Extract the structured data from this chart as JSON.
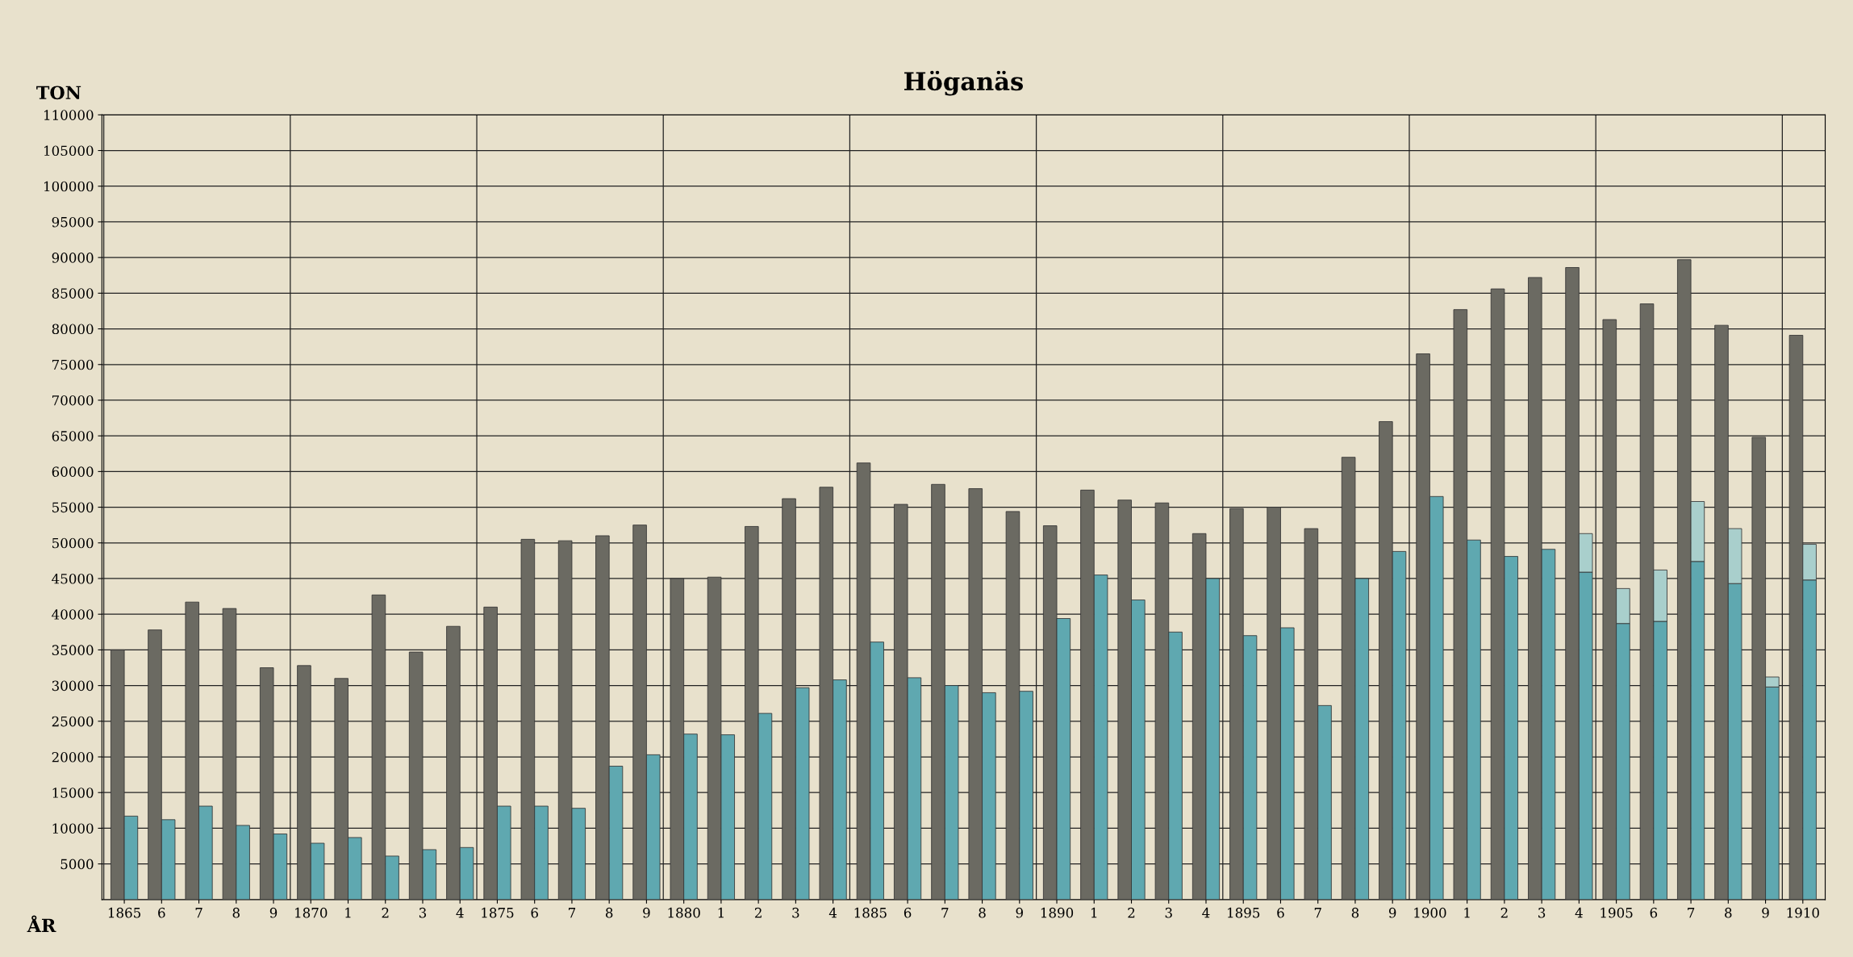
{
  "chart_data": {
    "type": "bar",
    "title": "Höganäs",
    "xlabel": "ÅR",
    "ylabel": "TON",
    "categories": [
      "1865",
      "6",
      "7",
      "8",
      "9",
      "1870",
      "1",
      "2",
      "3",
      "4",
      "1875",
      "6",
      "7",
      "8",
      "9",
      "1880",
      "1",
      "2",
      "3",
      "4",
      "1885",
      "6",
      "7",
      "8",
      "9",
      "1890",
      "1",
      "2",
      "3",
      "4",
      "1895",
      "6",
      "7",
      "8",
      "9",
      "1900",
      "1",
      "2",
      "3",
      "4",
      "1905",
      "6",
      "7",
      "8",
      "9",
      "1910"
    ],
    "series": [
      {
        "color": "#6b6a62",
        "values": [
          35000,
          37800,
          41700,
          40800,
          32500,
          32800,
          31000,
          42700,
          34700,
          38300,
          41000,
          50500,
          50300,
          51000,
          52500,
          45000,
          45200,
          52300,
          56200,
          57800,
          61200,
          55400,
          58200,
          57600,
          54400,
          52400,
          57400,
          56000,
          55600,
          51300,
          54800,
          55000,
          52000,
          62000,
          67000,
          76500,
          82700,
          85600,
          87200,
          88600,
          81300,
          83500,
          89700,
          80500,
          64800,
          79100
        ]
      },
      {
        "color": "#5fa8b0",
        "values": [
          11700,
          11200,
          13100,
          10400,
          9200,
          7900,
          8700,
          6100,
          7000,
          7300,
          13100,
          13100,
          12800,
          18700,
          20300,
          23200,
          23100,
          26100,
          29700,
          30800,
          36100,
          31100,
          30000,
          29000,
          29200,
          39400,
          45500,
          42000,
          37500,
          45000,
          37000,
          38100,
          27200,
          45000,
          48800,
          56500,
          50400,
          48100,
          49100,
          45900,
          38700,
          39000,
          47400,
          44300,
          29800,
          44800
        ]
      },
      {
        "color": "#a9cfcc",
        "values": [
          null,
          null,
          null,
          null,
          null,
          null,
          null,
          null,
          null,
          null,
          null,
          null,
          null,
          null,
          null,
          null,
          null,
          null,
          null,
          null,
          null,
          null,
          null,
          null,
          null,
          null,
          null,
          null,
          null,
          null,
          null,
          null,
          null,
          null,
          null,
          null,
          null,
          null,
          null,
          5400,
          4900,
          7200,
          8400,
          7700,
          1400,
          5000
        ],
        "base": [
          null,
          null,
          null,
          null,
          null,
          null,
          null,
          null,
          null,
          null,
          null,
          null,
          null,
          null,
          null,
          null,
          null,
          null,
          null,
          null,
          null,
          null,
          null,
          null,
          null,
          null,
          null,
          null,
          null,
          null,
          null,
          null,
          null,
          null,
          null,
          null,
          null,
          null,
          null,
          45900,
          38700,
          39000,
          47400,
          44300,
          29800,
          44800
        ]
      }
    ],
    "ylim": [
      0,
      110000
    ],
    "yticks": [
      5000,
      10000,
      15000,
      20000,
      25000,
      30000,
      35000,
      40000,
      45000,
      50000,
      55000,
      60000,
      65000,
      70000,
      75000,
      80000,
      85000,
      90000,
      95000,
      100000,
      105000,
      110000
    ],
    "grid": "y"
  }
}
